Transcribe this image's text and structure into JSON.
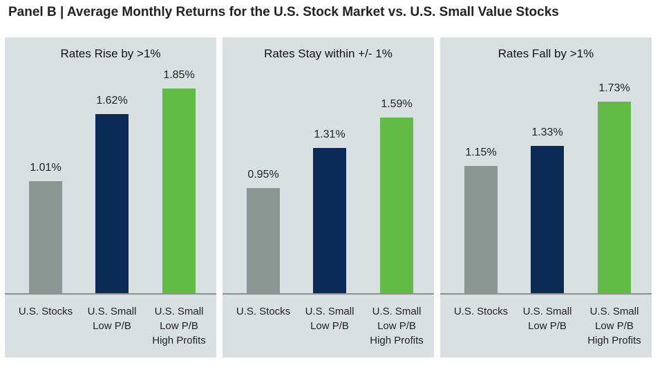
{
  "chart_data": {
    "type": "bar",
    "title": "Panel B | Average Monthly Returns for the U.S. Stock Market vs. U.S. Small Value Stocks",
    "categories": [
      "U.S. Stocks",
      "U.S. Small\nLow P/B",
      "U.S. Small\nLow P/B\nHigh Profits"
    ],
    "colors": [
      "#8c9794",
      "#0b2a55",
      "#62bb46"
    ],
    "ylim": [
      0,
      1.85
    ],
    "panels": [
      {
        "title": "Rates Rise by >1%",
        "values": [
          1.01,
          1.62,
          1.85
        ],
        "labels": [
          "1.01%",
          "1.62%",
          "1.85%"
        ]
      },
      {
        "title": "Rates Stay within +/- 1%",
        "values": [
          0.95,
          1.31,
          1.59
        ],
        "labels": [
          "0.95%",
          "1.31%",
          "1.59%"
        ]
      },
      {
        "title": "Rates Fall by >1%",
        "values": [
          1.15,
          1.33,
          1.73
        ],
        "labels": [
          "1.15%",
          "1.33%",
          "1.73%"
        ]
      }
    ]
  }
}
